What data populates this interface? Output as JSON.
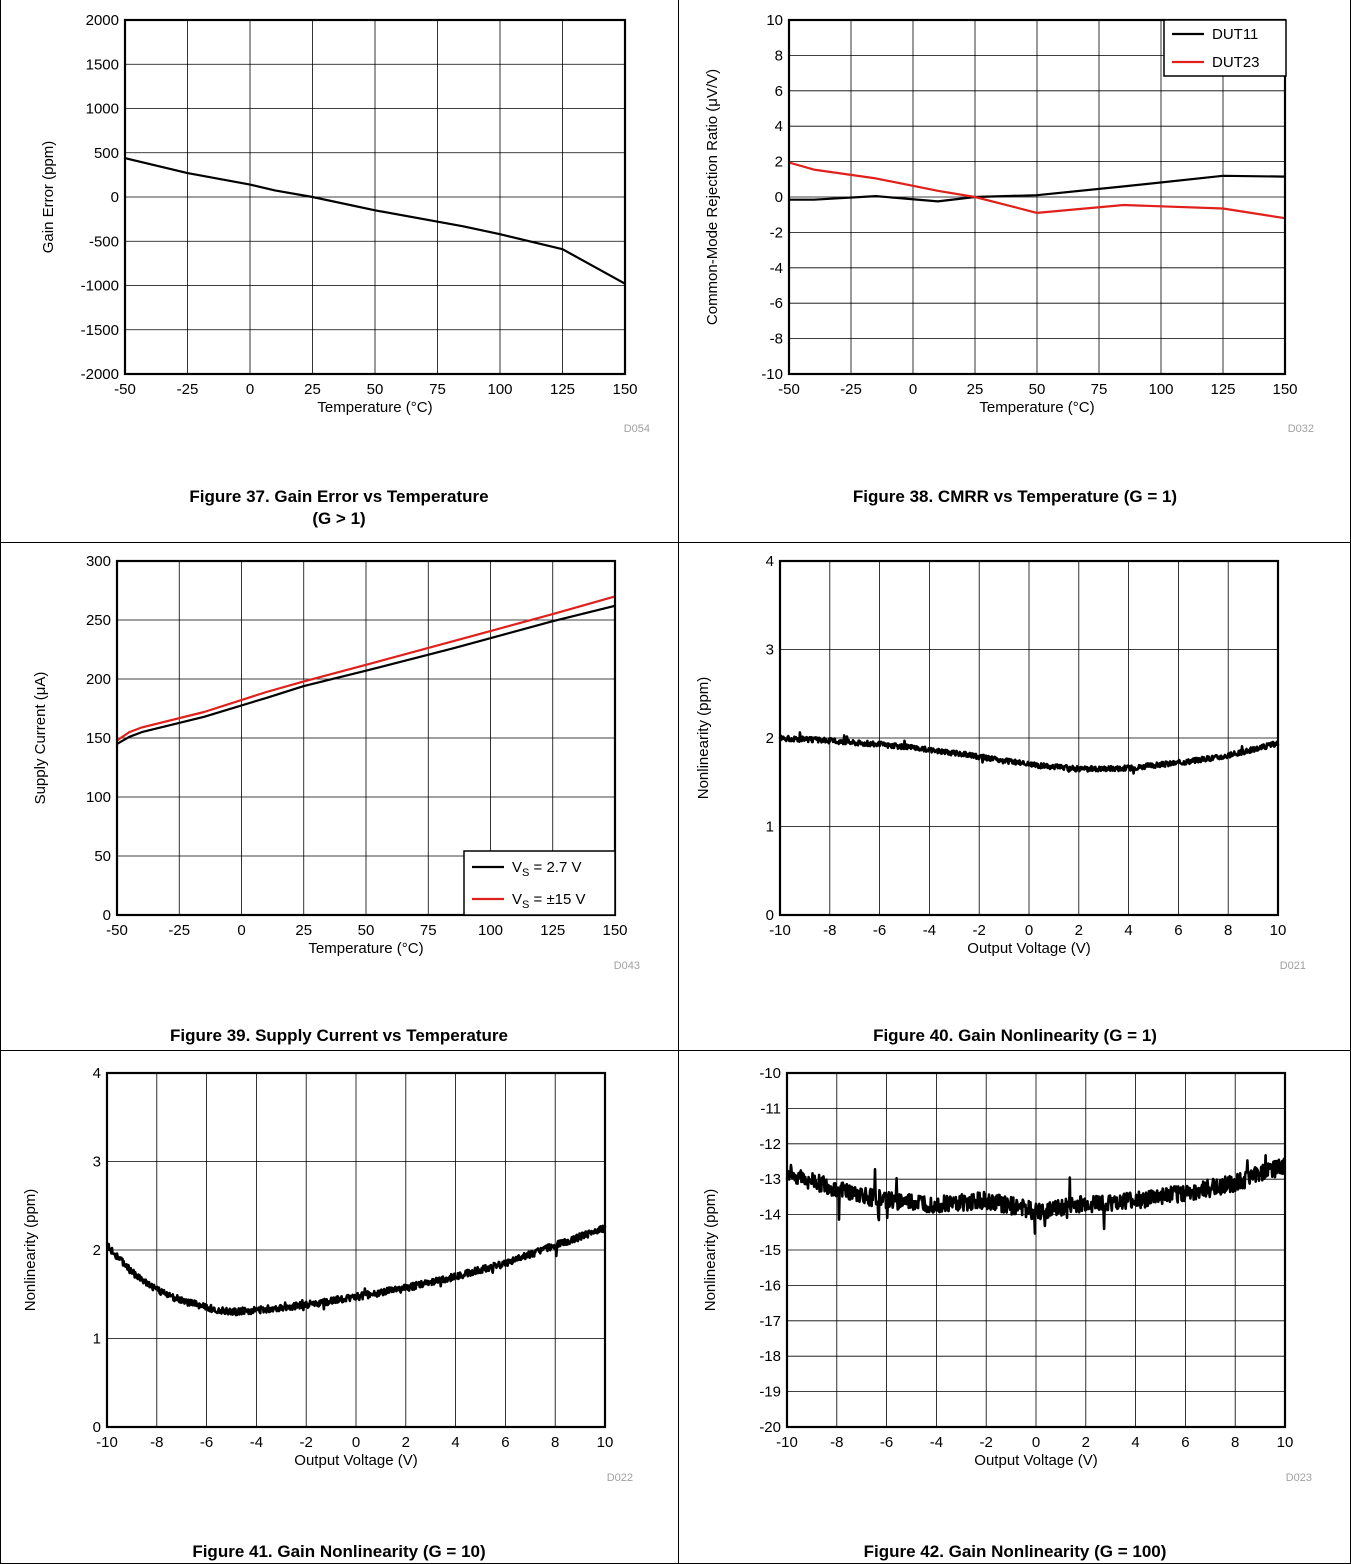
{
  "charts": [
    {
      "id": "fig37",
      "caption_line1": "Figure 37. Gain Error vs Temperature",
      "caption_line2": "(G > 1)",
      "code": "D054",
      "chart_data": {
        "type": "line",
        "xlabel": "Temperature (°C)",
        "ylabel": "Gain Error (ppm)",
        "xlim": [
          -50,
          150
        ],
        "ylim": [
          -2000,
          2000
        ],
        "xticks": [
          -50,
          -25,
          0,
          25,
          50,
          75,
          100,
          125,
          150
        ],
        "xtick_labels": [
          "-50",
          "-25",
          "0",
          "25",
          "50",
          "75",
          "100",
          "125",
          "150"
        ],
        "yticks": [
          -2000,
          -1500,
          -1000,
          -500,
          0,
          500,
          1000,
          1500,
          2000
        ],
        "ytick_labels": [
          "-2000",
          "-1500",
          "-1000",
          "-500",
          "0",
          "500",
          "1000",
          "1500",
          "2000"
        ],
        "grid": true,
        "series": [
          {
            "color": "#000000",
            "x": [
              -50,
              -25,
              0,
              10,
              25,
              50,
              85,
              100,
              125,
              150
            ],
            "y": [
              440,
              270,
              140,
              75,
              0,
              -150,
              -330,
              -420,
              -590,
              -980
            ]
          }
        ]
      }
    },
    {
      "id": "fig38",
      "caption_line1": "Figure 38. CMRR vs Temperature (G = 1)",
      "caption_line2": "",
      "code": "D032",
      "chart_data": {
        "type": "line",
        "xlabel": "Temperature (°C)",
        "ylabel": "Common-Mode Rejection Ratio (μV/V)",
        "xlim": [
          -50,
          150
        ],
        "ylim": [
          -10,
          10
        ],
        "xticks": [
          -50,
          -25,
          0,
          25,
          50,
          75,
          100,
          125,
          150
        ],
        "xtick_labels": [
          "-50",
          "-25",
          "0",
          "25",
          "50",
          "75",
          "100",
          "125",
          "150"
        ],
        "yticks": [
          -10,
          -8,
          -6,
          -4,
          -2,
          0,
          2,
          4,
          6,
          8,
          10
        ],
        "ytick_labels": [
          "-10",
          "-8",
          "-6",
          "-4",
          "-2",
          "0",
          "2",
          "4",
          "6",
          "8",
          "10"
        ],
        "grid": true,
        "legend_position": "top-right",
        "series": [
          {
            "name": "DUT11",
            "color": "#000000",
            "x": [
              -50,
              -40,
              -15,
              10,
              25,
              50,
              85,
              125,
              150
            ],
            "y": [
              -0.15,
              -0.15,
              0.05,
              -0.25,
              0.0,
              0.1,
              0.6,
              1.2,
              1.15
            ]
          },
          {
            "name": "DUT23",
            "color": "#e0201b",
            "x": [
              -50,
              -40,
              -15,
              10,
              25,
              50,
              85,
              125,
              150
            ],
            "y": [
              1.95,
              1.55,
              1.05,
              0.35,
              0.0,
              -0.9,
              -0.45,
              -0.65,
              -1.2
            ]
          }
        ]
      }
    },
    {
      "id": "fig39",
      "caption_line1": "Figure 39. Supply Current vs Temperature",
      "caption_line2": "",
      "code": "D043",
      "chart_data": {
        "type": "line",
        "xlabel": "Temperature (°C)",
        "ylabel": "Supply Current (μA)",
        "xlim": [
          -50,
          150
        ],
        "ylim": [
          0,
          300
        ],
        "xticks": [
          -50,
          -25,
          0,
          25,
          50,
          75,
          100,
          125,
          150
        ],
        "xtick_labels": [
          "-50",
          "-25",
          "0",
          "25",
          "50",
          "75",
          "100",
          "125",
          "150"
        ],
        "yticks": [
          0,
          50,
          100,
          150,
          200,
          250,
          300
        ],
        "ytick_labels": [
          "0",
          "50",
          "100",
          "150",
          "200",
          "250",
          "300"
        ],
        "grid": true,
        "legend_position": "bottom-right",
        "series": [
          {
            "name_main": "V",
            "name_sub": "S",
            "name_rest": " = 2.7 V",
            "color": "#000000",
            "x": [
              -50,
              -45,
              -40,
              -15,
              10,
              25,
              50,
              85,
              125,
              150
            ],
            "y": [
              145,
              151,
              155,
              168,
              184,
              194,
              207,
              226,
              249,
              262
            ]
          },
          {
            "name_main": "V",
            "name_sub": "S",
            "name_rest": " = ±15 V",
            "color": "#e0201b",
            "x": [
              -50,
              -45,
              -40,
              -15,
              10,
              25,
              50,
              85,
              125,
              150
            ],
            "y": [
              148,
              155,
              159,
              172,
              189,
              198,
              212,
              232,
              255,
              270
            ]
          }
        ]
      }
    },
    {
      "id": "fig40",
      "caption_line1": "Figure 40. Gain Nonlinearity (G = 1)",
      "caption_line2": "",
      "code": "D021",
      "chart_data": {
        "type": "line",
        "xlabel": "Output Voltage (V)",
        "ylabel": "Nonlinearity (ppm)",
        "xlim": [
          -10,
          10
        ],
        "ylim": [
          0,
          4
        ],
        "xticks": [
          -10,
          -8,
          -6,
          -4,
          -2,
          0,
          2,
          4,
          6,
          8,
          10
        ],
        "xtick_labels": [
          "-10",
          "-8",
          "-6",
          "-4",
          "-2",
          "0",
          "2",
          "4",
          "6",
          "8",
          "10"
        ],
        "yticks": [
          0,
          1,
          2,
          3,
          4
        ],
        "ytick_labels": [
          "0",
          "1",
          "2",
          "3",
          "4"
        ],
        "grid": true,
        "noisy": true,
        "noise_amplitude": 0.03,
        "series": [
          {
            "color": "#000000",
            "x": [
              -10,
              -8,
              -6,
              -4,
              -2,
              0,
              2,
              4,
              6,
              8,
              10
            ],
            "y": [
              2.0,
              1.97,
              1.93,
              1.87,
              1.79,
              1.7,
              1.65,
              1.66,
              1.72,
              1.8,
              1.94
            ]
          }
        ]
      }
    },
    {
      "id": "fig41",
      "caption_line1": "Figure 41. Gain Nonlinearity (G = 10)",
      "caption_line2": "",
      "code": "D022",
      "chart_data": {
        "type": "line",
        "xlabel": "Output Voltage (V)",
        "ylabel": "Nonlinearity (ppm)",
        "xlim": [
          -10,
          10
        ],
        "ylim": [
          0,
          4
        ],
        "xticks": [
          -10,
          -8,
          -6,
          -4,
          -2,
          0,
          2,
          4,
          6,
          8,
          10
        ],
        "xtick_labels": [
          "-10",
          "-8",
          "-6",
          "-4",
          "-2",
          "0",
          "2",
          "4",
          "6",
          "8",
          "10"
        ],
        "yticks": [
          0,
          1,
          2,
          3,
          4
        ],
        "ytick_labels": [
          "0",
          "1",
          "2",
          "3",
          "4"
        ],
        "grid": true,
        "noisy": true,
        "noise_amplitude": 0.04,
        "series": [
          {
            "color": "#000000",
            "x": [
              -10,
              -9,
              -8,
              -7,
              -6,
              -5,
              -4,
              -2,
              0,
              2,
              4,
              6,
              8,
              10
            ],
            "y": [
              2.05,
              1.75,
              1.55,
              1.43,
              1.35,
              1.3,
              1.32,
              1.38,
              1.47,
              1.57,
              1.7,
              1.85,
              2.05,
              2.25
            ]
          }
        ]
      }
    },
    {
      "id": "fig42",
      "caption_line1": "Figure 42. Gain Nonlinearity (G = 100)",
      "caption_line2": "",
      "code": "D023",
      "chart_data": {
        "type": "line",
        "xlabel": "Output Voltage (V)",
        "ylabel": "Nonlinearity (ppm)",
        "xlim": [
          -10,
          10
        ],
        "ylim": [
          -20,
          -10
        ],
        "xticks": [
          -10,
          -8,
          -6,
          -4,
          -2,
          0,
          2,
          4,
          6,
          8,
          10
        ],
        "xtick_labels": [
          "-10",
          "-8",
          "-6",
          "-4",
          "-2",
          "0",
          "2",
          "4",
          "6",
          "8",
          "10"
        ],
        "yticks": [
          -20,
          -19,
          -18,
          -17,
          -16,
          -15,
          -14,
          -13,
          -12,
          -11,
          -10
        ],
        "ytick_labels": [
          "-20",
          "-19",
          "-18",
          "-17",
          "-16",
          "-15",
          "-14",
          "-13",
          "-12",
          "-11",
          "-10"
        ],
        "grid": true,
        "noisy": true,
        "noise_amplitude": 0.25,
        "series": [
          {
            "color": "#000000",
            "x": [
              -10,
              -8,
              -6,
              -4,
              -2,
              0,
              2,
              4,
              6,
              8,
              10
            ],
            "y": [
              -12.8,
              -13.3,
              -13.6,
              -13.7,
              -13.6,
              -13.9,
              -13.7,
              -13.6,
              -13.4,
              -13.1,
              -12.6
            ]
          }
        ]
      }
    }
  ]
}
